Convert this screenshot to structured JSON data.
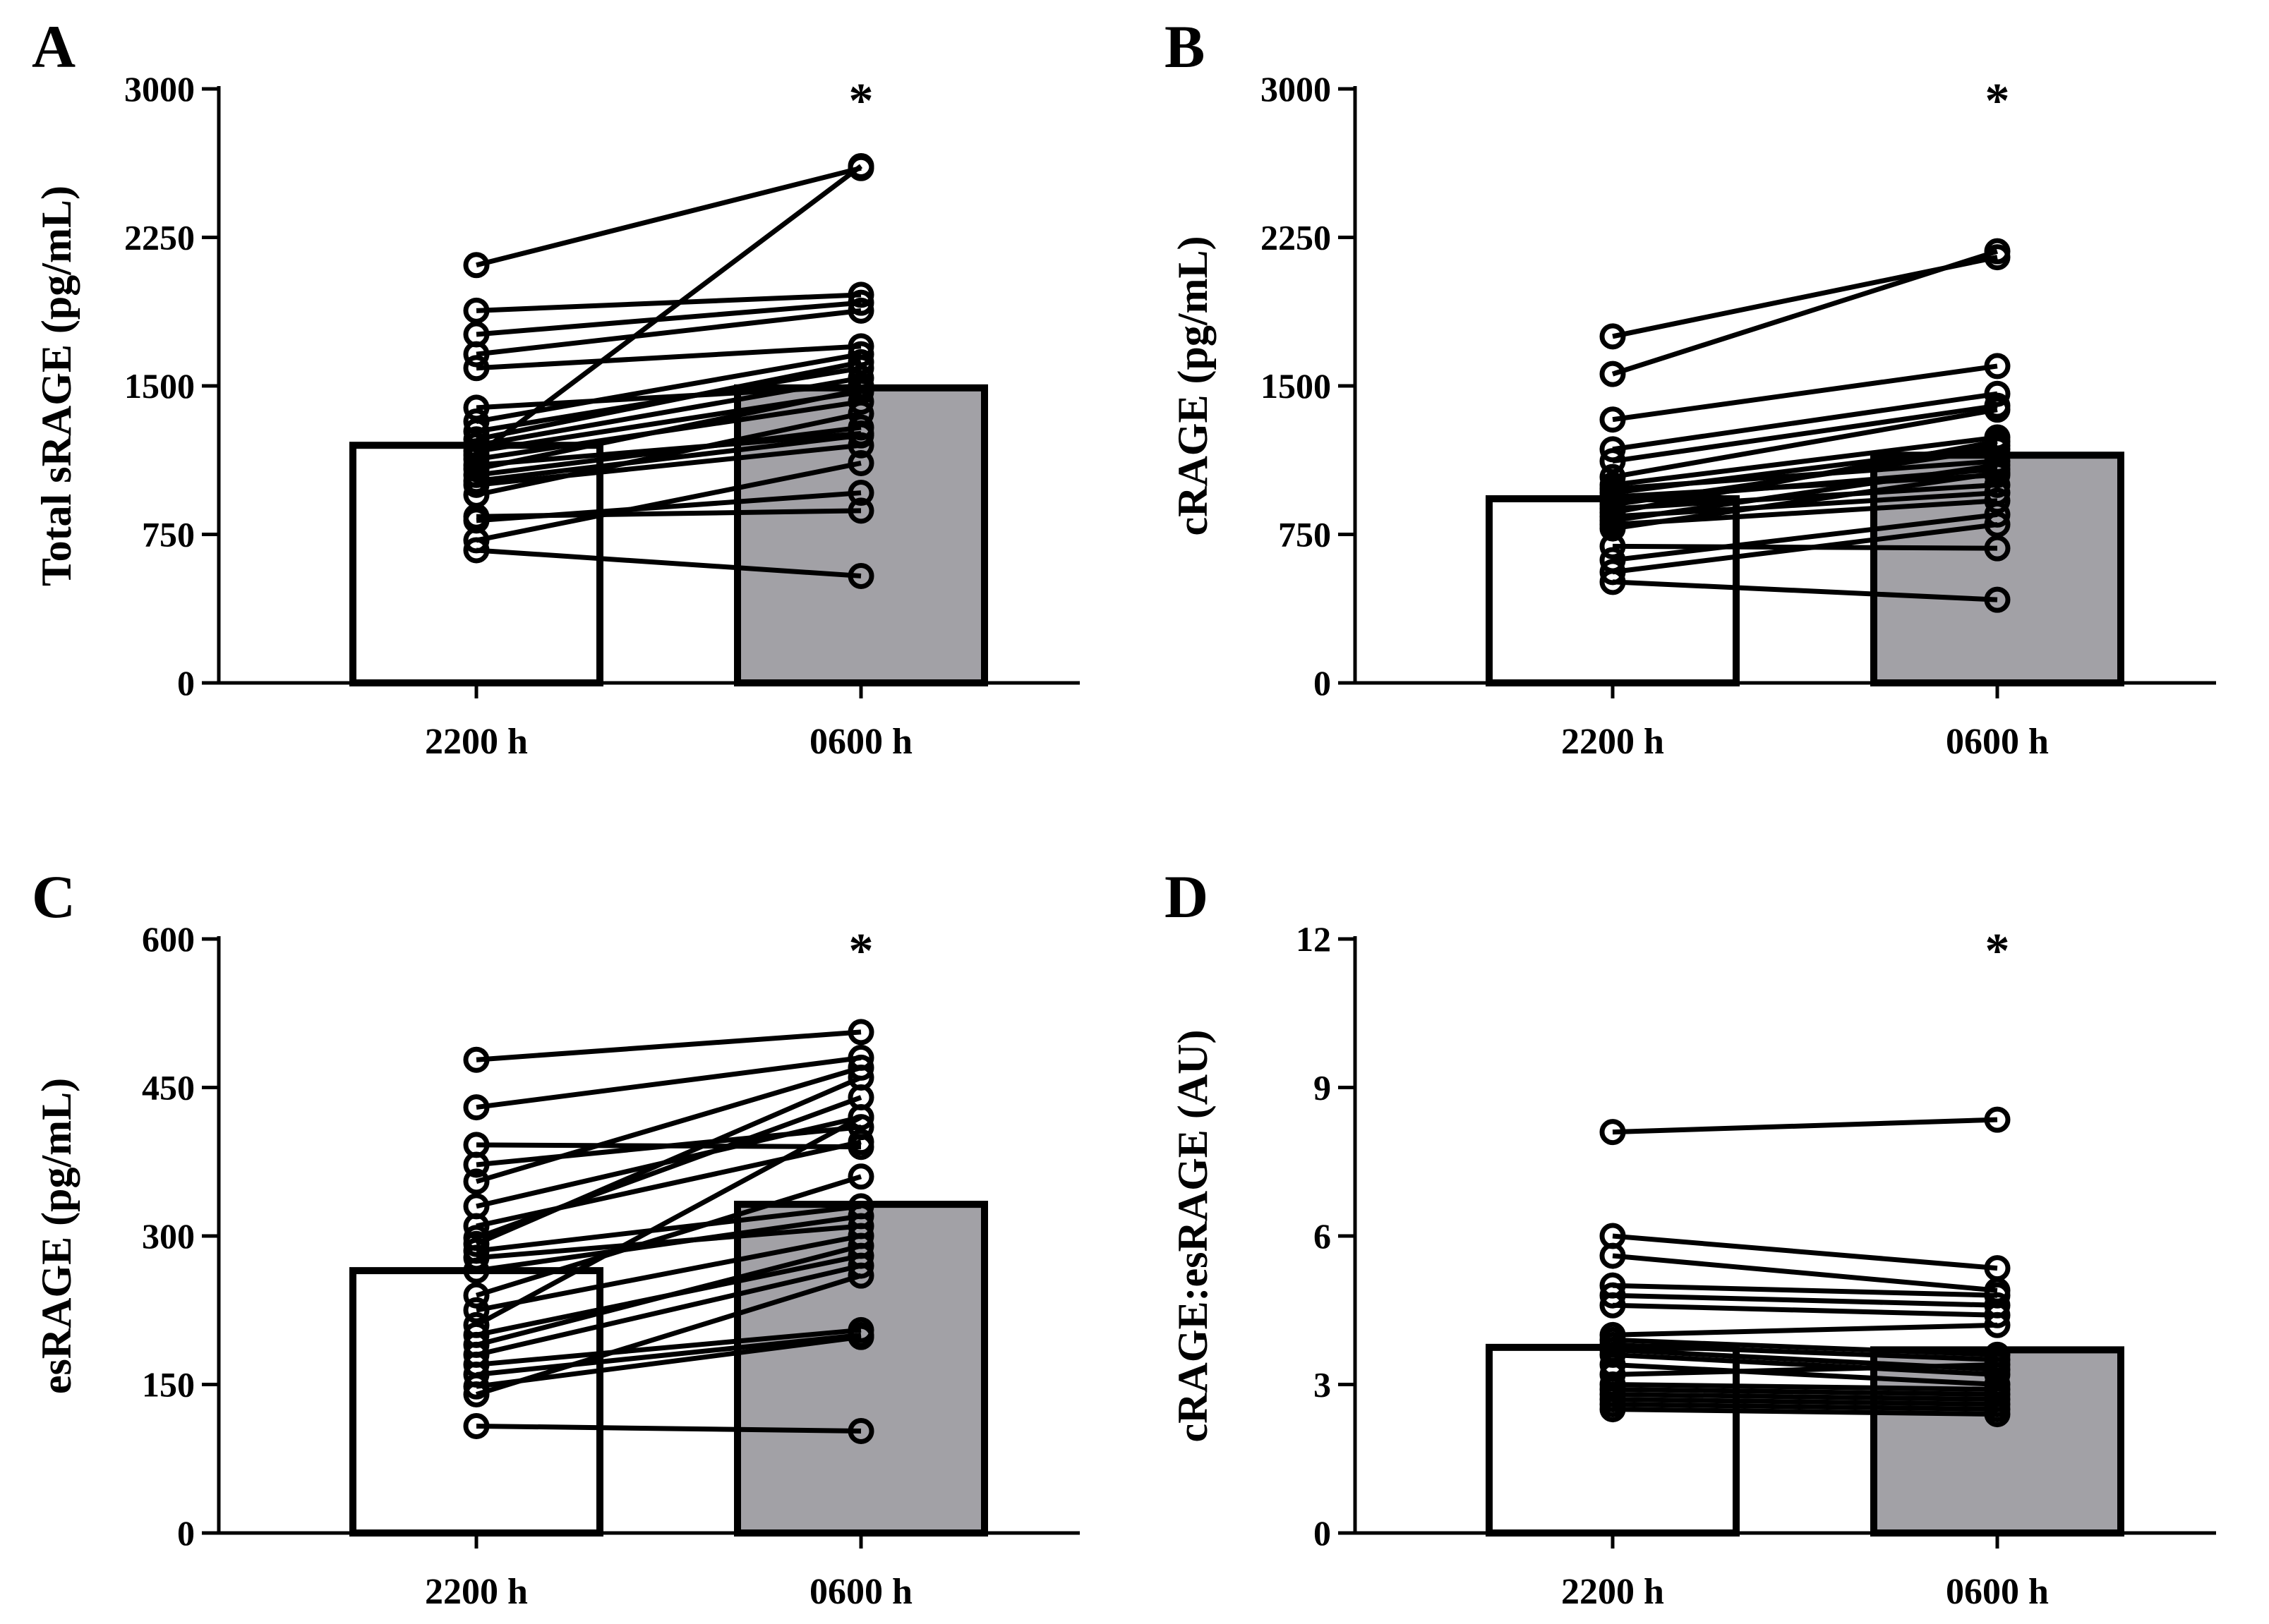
{
  "colors": {
    "bar_0600": "#a2a1a6",
    "bar_2200": "#ffffff",
    "stroke": "#000000"
  },
  "chart_data": [
    {
      "panel": "A",
      "type": "bar",
      "ylabel": "Total sRAGE (pg/mL)",
      "ylim": [
        0,
        3000
      ],
      "yticks": [
        "0",
        "750",
        "1500",
        "2250",
        "3000"
      ],
      "categories": [
        "2200 h",
        "0600 h"
      ],
      "values": [
        1200,
        1490
      ],
      "significance": "*",
      "paired_points": [
        [
          2110,
          2600
        ],
        [
          1880,
          1960
        ],
        [
          1760,
          1920
        ],
        [
          1660,
          1880
        ],
        [
          1590,
          1700
        ],
        [
          1390,
          1500
        ],
        [
          1320,
          1660
        ],
        [
          1270,
          1590
        ],
        [
          1230,
          1620
        ],
        [
          1200,
          1540
        ],
        [
          1170,
          1470
        ],
        [
          1150,
          2610
        ],
        [
          1130,
          1420
        ],
        [
          1100,
          1260
        ],
        [
          1080,
          1480
        ],
        [
          1050,
          1290
        ],
        [
          1020,
          1250
        ],
        [
          1000,
          1200
        ],
        [
          950,
          1360
        ],
        [
          840,
          870
        ],
        [
          820,
          960
        ],
        [
          720,
          1110
        ],
        [
          670,
          540
        ]
      ]
    },
    {
      "panel": "B",
      "type": "bar",
      "ylabel": "cRAGE (pg/mL)",
      "ylim": [
        0,
        3000
      ],
      "yticks": [
        "0",
        "750",
        "1500",
        "2250",
        "3000"
      ],
      "categories": [
        "2200 h",
        "0600 h"
      ],
      "values": [
        930,
        1150
      ],
      "significance": "*",
      "paired_points": [
        [
          1750,
          2150
        ],
        [
          1560,
          2180
        ],
        [
          1330,
          1600
        ],
        [
          1180,
          1460
        ],
        [
          1120,
          1400
        ],
        [
          1040,
          1380
        ],
        [
          1000,
          1240
        ],
        [
          980,
          1120
        ],
        [
          960,
          1200
        ],
        [
          940,
          1050
        ],
        [
          920,
          1080
        ],
        [
          900,
          1180
        ],
        [
          880,
          1000
        ],
        [
          860,
          1220
        ],
        [
          840,
          960
        ],
        [
          820,
          1100
        ],
        [
          800,
          920
        ],
        [
          780,
          1060
        ],
        [
          690,
          680
        ],
        [
          620,
          850
        ],
        [
          560,
          800
        ],
        [
          510,
          420
        ]
      ]
    },
    {
      "panel": "C",
      "type": "bar",
      "ylabel": "esRAGE (pg/mL)",
      "ylim": [
        0,
        600
      ],
      "yticks": [
        "0",
        "150",
        "300",
        "450",
        "600"
      ],
      "categories": [
        "2200 h",
        "0600 h"
      ],
      "values": [
        265,
        332
      ],
      "significance": "*",
      "paired_points": [
        [
          478,
          506
        ],
        [
          430,
          480
        ],
        [
          392,
          390
        ],
        [
          372,
          410
        ],
        [
          355,
          470
        ],
        [
          330,
          420
        ],
        [
          310,
          395
        ],
        [
          298,
          440
        ],
        [
          292,
          460
        ],
        [
          285,
          330
        ],
        [
          278,
          310
        ],
        [
          265,
          320
        ],
        [
          240,
          360
        ],
        [
          225,
          300
        ],
        [
          210,
          420
        ],
        [
          200,
          280
        ],
        [
          190,
          290
        ],
        [
          180,
          270
        ],
        [
          170,
          205
        ],
        [
          160,
          200
        ],
        [
          148,
          198
        ],
        [
          140,
          260
        ],
        [
          108,
          103
        ]
      ]
    },
    {
      "panel": "D",
      "type": "bar",
      "ylabel": "cRAGE:esRAGE (AU)",
      "ylim": [
        0,
        12
      ],
      "yticks": [
        "0",
        "3",
        "6",
        "9",
        "12"
      ],
      "categories": [
        "2200 h",
        "0600 h"
      ],
      "values": [
        3.75,
        3.7
      ],
      "significance": "*",
      "paired_points": [
        [
          8.1,
          8.35
        ],
        [
          6.0,
          5.35
        ],
        [
          5.6,
          4.9
        ],
        [
          5.0,
          4.8
        ],
        [
          4.8,
          4.6
        ],
        [
          4.6,
          4.4
        ],
        [
          4.0,
          4.2
        ],
        [
          3.9,
          3.6
        ],
        [
          3.8,
          3.5
        ],
        [
          3.7,
          3.3
        ],
        [
          3.6,
          3.2
        ],
        [
          3.4,
          3.0
        ],
        [
          3.2,
          3.4
        ],
        [
          3.0,
          2.9
        ],
        [
          2.9,
          2.8
        ],
        [
          2.8,
          2.7
        ],
        [
          2.7,
          2.6
        ],
        [
          2.6,
          2.5
        ],
        [
          2.5,
          2.4
        ]
      ]
    }
  ]
}
